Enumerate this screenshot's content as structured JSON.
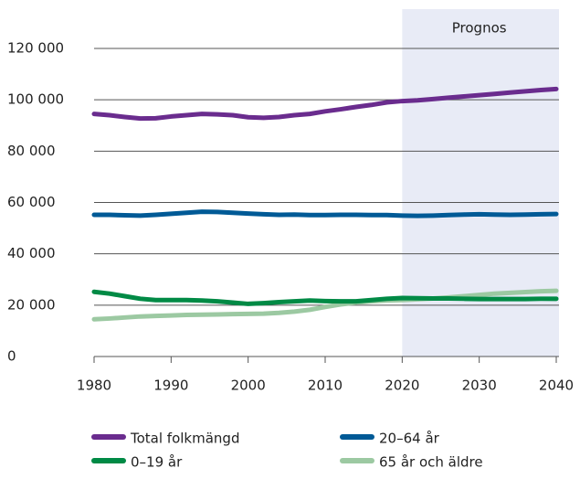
{
  "chart_data": {
    "type": "line",
    "x": [
      1980,
      1982,
      1984,
      1986,
      1988,
      1990,
      1992,
      1994,
      1996,
      1998,
      2000,
      2002,
      2004,
      2006,
      2008,
      2010,
      2012,
      2014,
      2016,
      2018,
      2020,
      2022,
      2024,
      2026,
      2028,
      2030,
      2032,
      2034,
      2036,
      2038,
      2040
    ],
    "series": [
      {
        "name": "Total folkmängd",
        "color": "#6a2c8e",
        "values": [
          94500,
          94000,
          93300,
          92700,
          92800,
          93500,
          94000,
          94500,
          94300,
          94000,
          93200,
          93000,
          93300,
          94000,
          94500,
          95500,
          96300,
          97200,
          98000,
          99000,
          99500,
          99800,
          100300,
          100800,
          101300,
          101800,
          102300,
          102800,
          103300,
          103800,
          104200
        ]
      },
      {
        "name": "20–64 år",
        "color": "#005a96",
        "values": [
          55200,
          55200,
          55000,
          54900,
          55200,
          55600,
          56000,
          56400,
          56300,
          56000,
          55700,
          55400,
          55200,
          55300,
          55100,
          55100,
          55200,
          55200,
          55100,
          55100,
          54900,
          54800,
          54900,
          55100,
          55300,
          55400,
          55300,
          55200,
          55300,
          55400,
          55500
        ]
      },
      {
        "name": "0–19 år",
        "color": "#008a45",
        "values": [
          25200,
          24500,
          23500,
          22500,
          22000,
          22000,
          22000,
          21800,
          21500,
          21000,
          20500,
          20800,
          21200,
          21500,
          21800,
          21600,
          21500,
          21500,
          22000,
          22500,
          22800,
          22700,
          22600,
          22600,
          22500,
          22400,
          22400,
          22400,
          22400,
          22500,
          22500
        ]
      },
      {
        "name": "65 år och äldre",
        "color": "#9cc9a2",
        "values": [
          14500,
          14800,
          15200,
          15600,
          15800,
          16000,
          16200,
          16300,
          16400,
          16500,
          16600,
          16700,
          17000,
          17500,
          18200,
          19300,
          20300,
          21000,
          21500,
          21800,
          22000,
          22300,
          22600,
          23000,
          23500,
          24000,
          24500,
          24800,
          25100,
          25400,
          25600
        ]
      }
    ],
    "forecast": {
      "label": "Prognos",
      "start": 2020
    },
    "xlim": [
      1980,
      2040
    ],
    "xticks": [
      1980,
      1990,
      2000,
      2010,
      2020,
      2030,
      2040
    ],
    "ylim": [
      0,
      120000
    ],
    "yticks": [
      0,
      {
        "value": 20000,
        "label": "20 000"
      },
      {
        "value": 40000,
        "label": "40 000"
      },
      {
        "value": 60000,
        "label": "60 000"
      },
      {
        "value": 80000,
        "label": "80 000"
      },
      {
        "value": 100000,
        "label": "100 000"
      },
      {
        "value": 120000,
        "label": "120 000"
      }
    ],
    "grid": true
  }
}
